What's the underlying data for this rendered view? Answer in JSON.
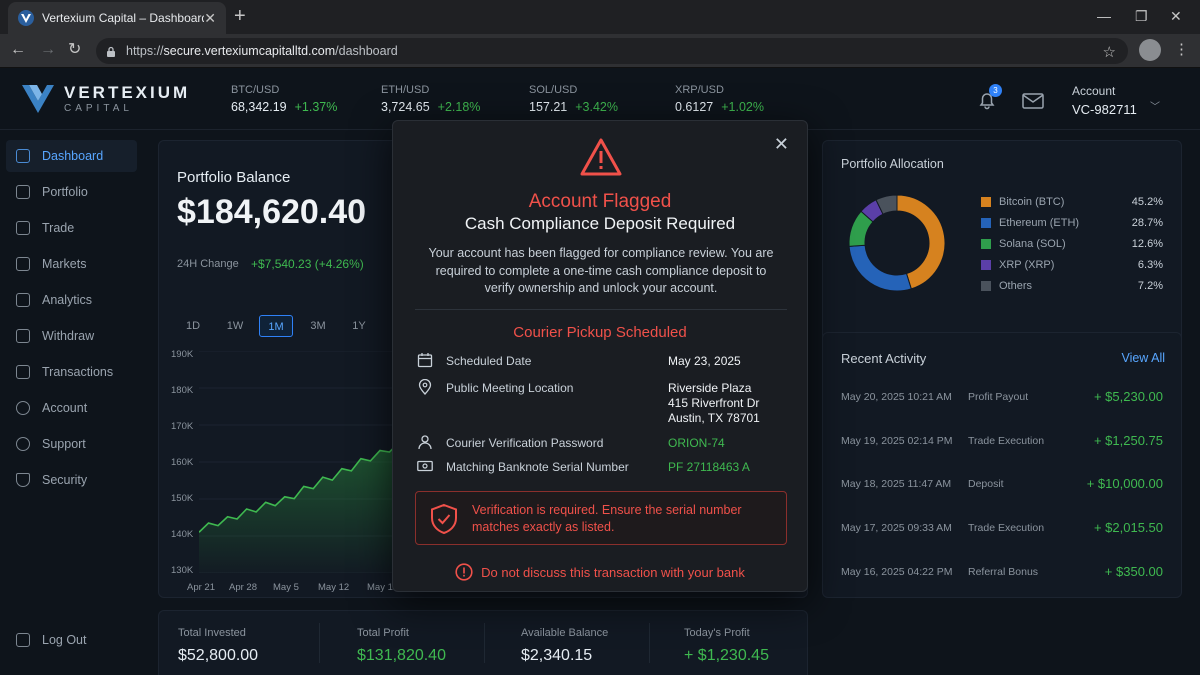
{
  "browser": {
    "tab_title": "Vertexium Capital – Dashboard",
    "url_prefix": "https://",
    "url_host": "secure.vertexiumcapitalltd.com",
    "url_path": "/dashboard"
  },
  "brand": {
    "name": "VERTEXIUM",
    "sub": "CAPITAL"
  },
  "tickers": [
    {
      "pair": "BTC/USD",
      "price": "68,342.19",
      "change": "+1.37%"
    },
    {
      "pair": "ETH/USD",
      "price": "3,724.65",
      "change": "+2.18%"
    },
    {
      "pair": "SOL/USD",
      "price": "157.21",
      "change": "+3.42%"
    },
    {
      "pair": "XRP/USD",
      "price": "0.6127",
      "change": "+1.02%"
    }
  ],
  "notifications_count": "3",
  "account": {
    "label": "Account",
    "id": "VC-982711"
  },
  "sidebar": {
    "items": [
      {
        "label": "Dashboard"
      },
      {
        "label": "Portfolio"
      },
      {
        "label": "Trade"
      },
      {
        "label": "Markets"
      },
      {
        "label": "Analytics"
      },
      {
        "label": "Withdraw"
      },
      {
        "label": "Transactions"
      },
      {
        "label": "Account"
      },
      {
        "label": "Support"
      },
      {
        "label": "Security"
      }
    ],
    "logout": "Log Out"
  },
  "balance": {
    "title": "Portfolio Balance",
    "value": "$184,620.40",
    "change_label": "24H Change",
    "change_value": "+$7,540.23 (+4.26%)",
    "ranges": [
      "1D",
      "1W",
      "1M",
      "3M",
      "1Y"
    ],
    "active_range": "1M"
  },
  "chart_data": {
    "type": "area",
    "x_ticks": [
      "Apr 21",
      "Apr 28",
      "May 5",
      "May 12",
      "May 19"
    ],
    "y_ticks": [
      "190K",
      "180K",
      "170K",
      "160K",
      "150K",
      "140K",
      "130K"
    ],
    "ylim": [
      130000,
      190000
    ],
    "series": [
      {
        "values": [
          141000,
          143500,
          142800,
          145200,
          144600,
          147300,
          146500,
          149100,
          148200,
          150600,
          150100,
          153400,
          152800,
          155900,
          155100,
          158200,
          157600,
          160900,
          160300,
          163100,
          162700,
          165200
        ]
      }
    ]
  },
  "stats": [
    {
      "label": "Total Invested",
      "value": "$52,800.00"
    },
    {
      "label": "Total Profit",
      "value": "$131,820.40"
    },
    {
      "label": "Available Balance",
      "value": "$2,340.15"
    },
    {
      "label": "Today's Profit",
      "value": "+ $1,230.45"
    }
  ],
  "allocation": {
    "title": "Portfolio Allocation",
    "items": [
      {
        "name": "Bitcoin (BTC)",
        "pct": "45.2%",
        "value": 45.2,
        "color": "#d6821f"
      },
      {
        "name": "Ethereum (ETH)",
        "pct": "28.7%",
        "value": 28.7,
        "color": "#2563b8"
      },
      {
        "name": "Solana (SOL)",
        "pct": "12.6%",
        "value": 12.6,
        "color": "#2f9e4c"
      },
      {
        "name": "XRP (XRP)",
        "pct": "6.3%",
        "value": 6.3,
        "color": "#5b3fa8"
      },
      {
        "name": "Others",
        "pct": "7.2%",
        "value": 7.2,
        "color": "#4a525c"
      }
    ]
  },
  "activity": {
    "title": "Recent Activity",
    "view_all": "View All",
    "rows": [
      {
        "date": "May 20, 2025 10:21 AM",
        "type": "Profit Payout",
        "amount": "+ $5,230.00"
      },
      {
        "date": "May 19, 2025 02:14 PM",
        "type": "Trade Execution",
        "amount": "+ $1,250.75"
      },
      {
        "date": "May 18, 2025 11:47 AM",
        "type": "Deposit",
        "amount": "+ $10,000.00"
      },
      {
        "date": "May 17, 2025 09:33 AM",
        "type": "Trade Execution",
        "amount": "+ $2,015.50"
      },
      {
        "date": "May 16, 2025 04:22 PM",
        "type": "Referral Bonus",
        "amount": "+ $350.00"
      }
    ]
  },
  "modal": {
    "title": "Account Flagged",
    "subtitle": "Cash Compliance Deposit Required",
    "body": "Your account has been flagged for compliance review. You are required to complete a one-time cash compliance deposit to verify ownership and unlock your account.",
    "section_title": "Courier Pickup Scheduled",
    "details": [
      {
        "label": "Scheduled Date",
        "value": "May 23, 2025"
      },
      {
        "label": "Public Meeting Location",
        "value_lines": [
          "Riverside Plaza",
          "415 Riverfront Dr",
          "Austin, TX 78701"
        ]
      },
      {
        "label": "Courier Verification Password",
        "value": "ORION-74"
      },
      {
        "label": "Matching Banknote Serial Number",
        "value": "PF 27118463 A"
      }
    ],
    "warning": "Verification is required. Ensure the serial number matches exactly as listed.",
    "footer": "Do not discuss this transaction with your bank"
  }
}
